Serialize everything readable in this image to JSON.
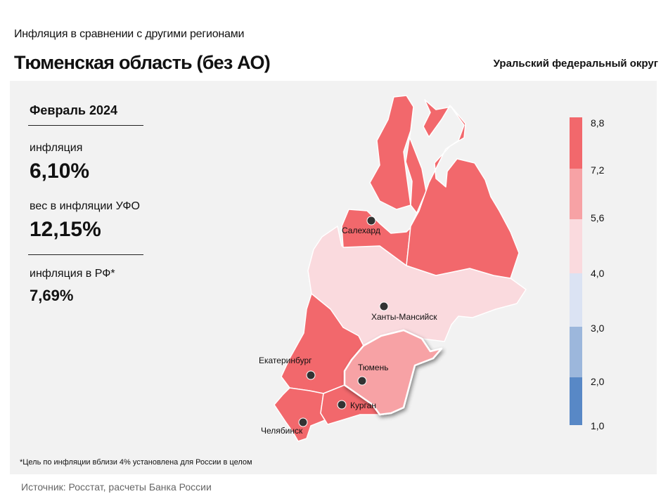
{
  "header": {
    "subtitle": "Инфляция  в сравнении  с другими  регионами",
    "title": "Тюменская область (без АО)",
    "district": "Уральский федеральный округ"
  },
  "stats": {
    "period": "Февраль 2024",
    "inflation_label": "инфляция",
    "inflation_value": "6,10%",
    "weight_label": "вес в инфляции  УФО",
    "weight_value": "12,15%",
    "rf_label": "инфляция  в РФ*",
    "rf_value": "7,69%"
  },
  "cities": {
    "salekhard": "Салехард",
    "khanty": "Ханты-Мансийск",
    "ekb": "Екатеринбург",
    "tyumen": "Тюмень",
    "kurgan": "Курган",
    "chelyabinsk": "Челябинск"
  },
  "legend": {
    "ticks": [
      "8,8",
      "7,2",
      "5,6",
      "4,0",
      "3,0",
      "2,0",
      "1,0"
    ],
    "colors": [
      "#f2686c",
      "#f7a2a5",
      "#fadade",
      "#dbe3f3",
      "#9cb7dc",
      "#5888c6"
    ]
  },
  "footnote": "*Цель по инфляции вблизи 4% установлена для России в целом",
  "source": "Источник: Росстат, расчеты Банка России"
}
